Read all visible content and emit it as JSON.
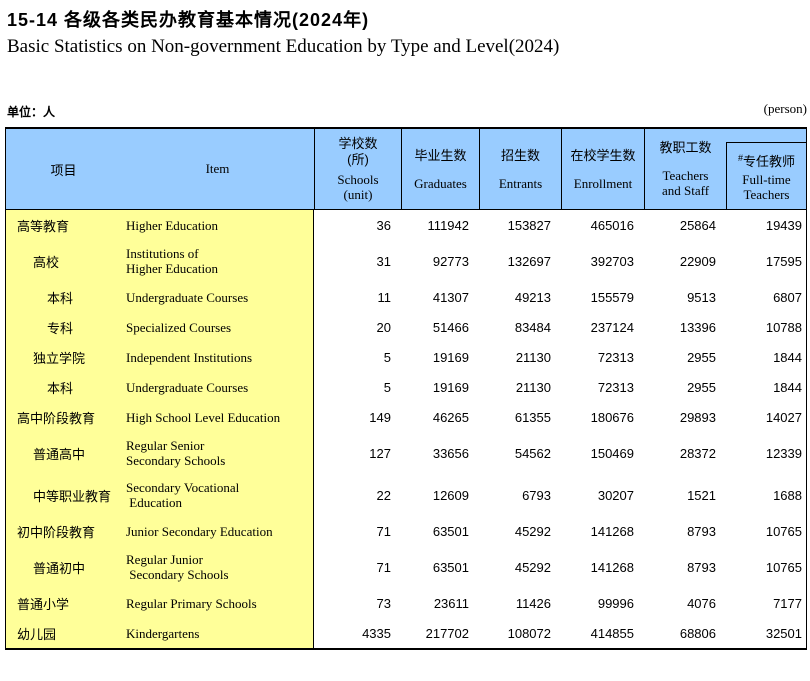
{
  "page": {
    "title_cn": "15-14 各级各类民办教育基本情况(2024年)",
    "title_en": "Basic Statistics on Non-government Education by Type and Level(2024)",
    "unit_cn": "单位：人",
    "unit_en": "(person)"
  },
  "colors": {
    "header_bg": "#99CCFF",
    "stub_bg": "#FFFF99",
    "border": "#000000"
  },
  "table": {
    "header": {
      "stub_cn": "项目",
      "stub_en": "Item",
      "columns": [
        {
          "cn": "学校数\n(所)",
          "en": "Schools\n(unit)"
        },
        {
          "cn": "毕业生数",
          "en": "Graduates"
        },
        {
          "cn": "招生数",
          "en": "Entrants"
        },
        {
          "cn": "在校学生数",
          "en": "Enrollment"
        },
        {
          "cn": "教职工数",
          "en": "Teachers\nand Staff"
        },
        {
          "cn": "专任教师",
          "hash": "#",
          "en": "Full-time\nTeachers"
        }
      ]
    },
    "rows": [
      {
        "cn": "高等教育",
        "en": "Higher Education",
        "indent": 0,
        "tall": false,
        "values": [
          "36",
          "111942",
          "153827",
          "465016",
          "25864",
          "19439"
        ]
      },
      {
        "cn": "高校",
        "en": "Institutions of\nHigher Education",
        "indent": 1,
        "tall": true,
        "values": [
          "31",
          "92773",
          "132697",
          "392703",
          "22909",
          "17595"
        ]
      },
      {
        "cn": "本科",
        "en": "Undergraduate Courses",
        "indent": 2,
        "tall": false,
        "values": [
          "11",
          "41307",
          "49213",
          "155579",
          "9513",
          "6807"
        ]
      },
      {
        "cn": "专科",
        "en": "Specialized Courses",
        "indent": 2,
        "tall": false,
        "values": [
          "20",
          "51466",
          "83484",
          "237124",
          "13396",
          "10788"
        ]
      },
      {
        "cn": "独立学院",
        "en": "Independent Institutions",
        "indent": 1,
        "tall": false,
        "values": [
          "5",
          "19169",
          "21130",
          "72313",
          "2955",
          "1844"
        ]
      },
      {
        "cn": "本科",
        "en": "Undergraduate Courses",
        "indent": 2,
        "tall": false,
        "values": [
          "5",
          "19169",
          "21130",
          "72313",
          "2955",
          "1844"
        ]
      },
      {
        "cn": "高中阶段教育",
        "en": "High School Level Education",
        "indent": 0,
        "tall": false,
        "values": [
          "149",
          "46265",
          "61355",
          "180676",
          "29893",
          "14027"
        ]
      },
      {
        "cn": "普通高中",
        "en": "Regular Senior\nSecondary Schools",
        "indent": 1,
        "tall": true,
        "values": [
          "127",
          "33656",
          "54562",
          "150469",
          "28372",
          "12339"
        ]
      },
      {
        "cn": "中等职业教育",
        "en": "Secondary Vocational\n Education",
        "indent": 1,
        "tall": true,
        "values": [
          "22",
          "12609",
          "6793",
          "30207",
          "1521",
          "1688"
        ]
      },
      {
        "cn": "初中阶段教育",
        "en": "Junior Secondary Education",
        "indent": 0,
        "tall": false,
        "values": [
          "71",
          "63501",
          "45292",
          "141268",
          "8793",
          "10765"
        ]
      },
      {
        "cn": "普通初中",
        "en": "Regular Junior\n Secondary Schools",
        "indent": 1,
        "tall": true,
        "values": [
          "71",
          "63501",
          "45292",
          "141268",
          "8793",
          "10765"
        ]
      },
      {
        "cn": "普通小学",
        "en": "Regular Primary Schools",
        "indent": 0,
        "tall": false,
        "values": [
          "73",
          "23611",
          "11426",
          "99996",
          "4076",
          "7177"
        ]
      },
      {
        "cn": "幼儿园",
        "en": "Kindergartens",
        "indent": 0,
        "tall": false,
        "values": [
          "4335",
          "217702",
          "108072",
          "414855",
          "68806",
          "32501"
        ]
      }
    ]
  }
}
